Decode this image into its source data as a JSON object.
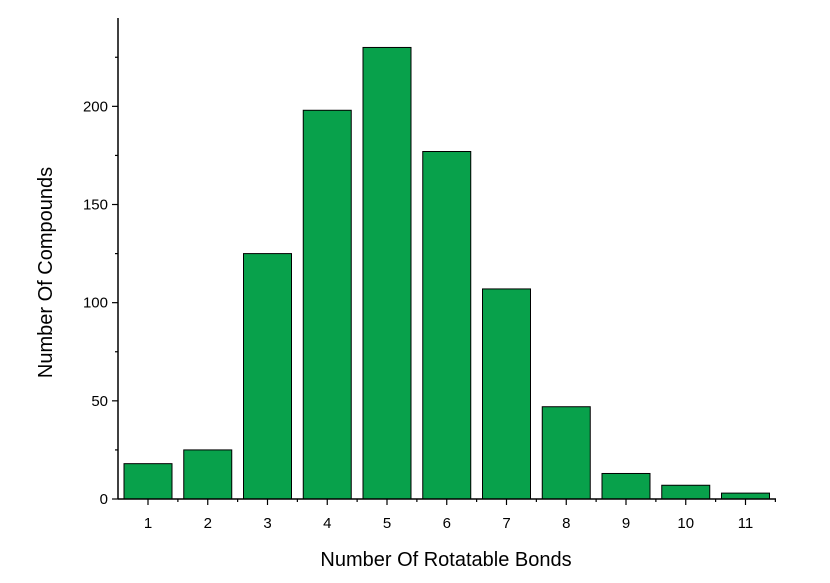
{
  "chart_data": {
    "type": "bar",
    "title": "",
    "xlabel": "Number Of Rotatable Bonds",
    "ylabel": "Number Of Compounds",
    "categories": [
      "1",
      "2",
      "3",
      "4",
      "5",
      "6",
      "7",
      "8",
      "9",
      "10",
      "11"
    ],
    "values": [
      18,
      25,
      125,
      198,
      230,
      177,
      107,
      47,
      13,
      7,
      3
    ],
    "ylim": [
      0,
      245
    ],
    "yticks": [
      0,
      50,
      100,
      150,
      200
    ],
    "grid": false,
    "legend": "none",
    "bar_color": "#08a14b",
    "bar_edge_color": "#000000"
  }
}
